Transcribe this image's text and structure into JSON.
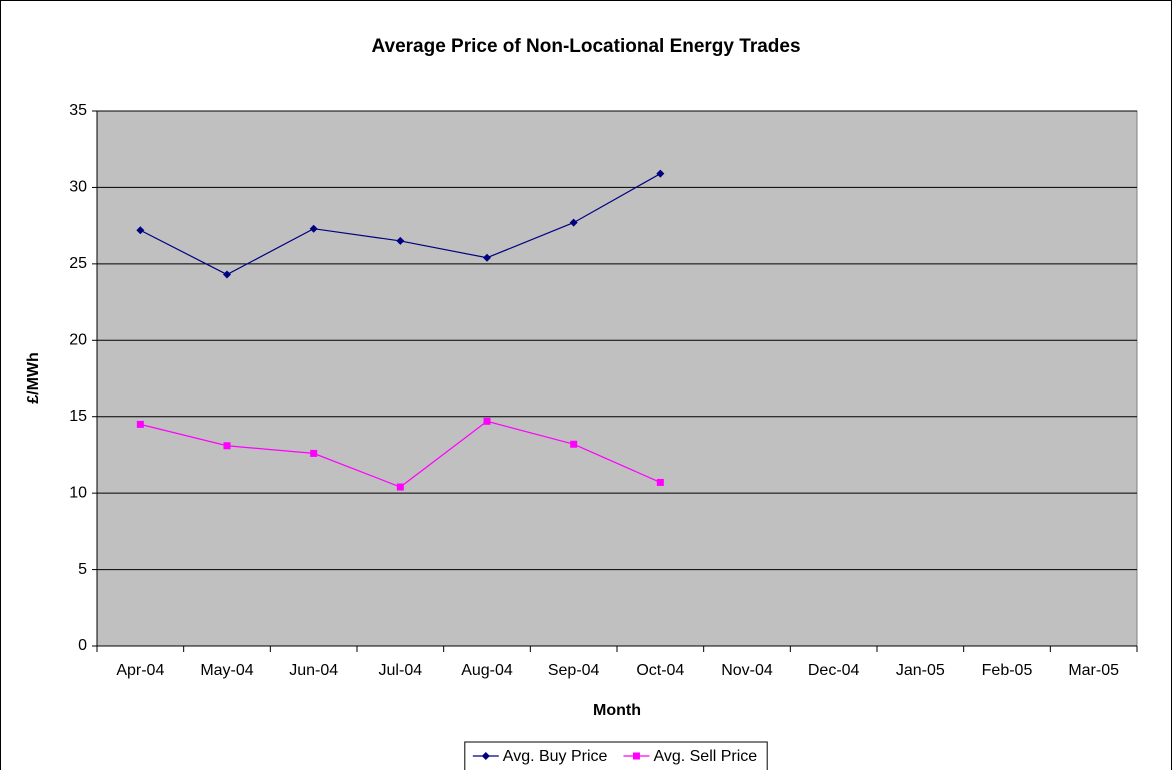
{
  "chart_data": {
    "type": "line",
    "title": "Average Price of Non-Locational Energy Trades",
    "x_label": "Month",
    "y_label": "£/MWh",
    "categories": [
      "Apr-04",
      "May-04",
      "Jun-04",
      "Jul-04",
      "Aug-04",
      "Sep-04",
      "Oct-04",
      "Nov-04",
      "Dec-04",
      "Jan-05",
      "Feb-05",
      "Mar-05"
    ],
    "series": [
      {
        "name": "Avg. Buy Price",
        "color": "#000080",
        "marker": "diamond",
        "values": [
          27.2,
          24.3,
          27.3,
          26.5,
          25.4,
          27.7,
          30.9,
          null,
          null,
          null,
          null,
          null
        ]
      },
      {
        "name": "Avg. Sell Price",
        "color": "#ff00ff",
        "marker": "square",
        "values": [
          14.5,
          13.1,
          12.6,
          10.4,
          14.7,
          13.2,
          10.7,
          null,
          null,
          null,
          null,
          null
        ]
      }
    ],
    "ylim": [
      0,
      35
    ],
    "yticks": [
      0,
      5,
      10,
      15,
      20,
      25,
      30,
      35
    ],
    "grid": true,
    "legend": "bottom"
  }
}
